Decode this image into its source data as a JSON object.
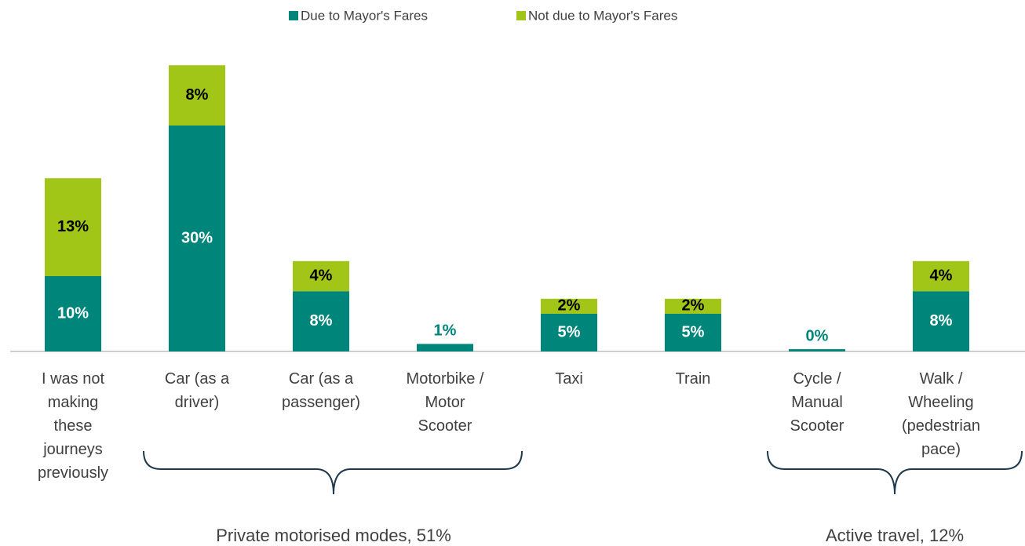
{
  "chart_data": {
    "type": "stacked_bar",
    "categories": [
      "I was not making these journeys previously",
      "Car (as a driver)",
      "Car (as a passenger)",
      "Motorbike / Motor Scooter",
      "Taxi",
      "Train",
      "Cycle / Manual Scooter",
      "Walk / Wheeling (pedestrian pace)"
    ],
    "series": [
      {
        "name": "Due to Mayor's Fares",
        "color": "#00857a",
        "values": [
          10,
          30,
          8,
          1,
          5,
          5,
          0.3,
          8
        ],
        "value_labels": [
          "10%",
          "30%",
          "8%",
          "1%",
          "5%",
          "5%",
          "0%",
          "8%"
        ]
      },
      {
        "name": "Not due to Mayor's Fares",
        "color": "#a2c617",
        "values": [
          13,
          8,
          4,
          null,
          2,
          2,
          null,
          4
        ],
        "value_labels": [
          "13%",
          "8%",
          "4%",
          null,
          "2%",
          "2%",
          null,
          "4%"
        ]
      }
    ],
    "legend": "top",
    "annotations": [
      "Private motorised modes, 51%",
      "Active travel, 12%"
    ]
  }
}
